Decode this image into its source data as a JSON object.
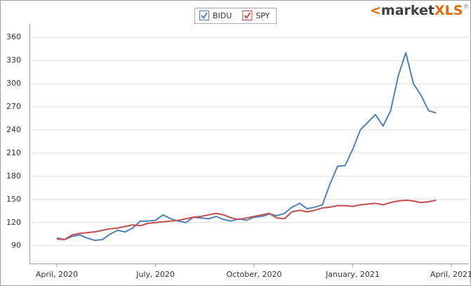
{
  "chart_data": {
    "type": "line",
    "logo": {
      "arrow": "<",
      "text": "market",
      "accent": "XLS",
      "mark": "®"
    },
    "categories": [
      "April, 2020",
      null,
      null,
      null,
      null,
      null,
      null,
      null,
      null,
      null,
      null,
      null,
      null,
      "July, 2020",
      null,
      null,
      null,
      null,
      null,
      null,
      null,
      null,
      null,
      null,
      null,
      null,
      "October, 2020",
      null,
      null,
      null,
      null,
      null,
      null,
      null,
      null,
      null,
      null,
      null,
      null,
      "January, 2021",
      null,
      null,
      null,
      null,
      null,
      null,
      null,
      null,
      null,
      null,
      null,
      null,
      "April, 2021"
    ],
    "series": [
      {
        "name": "BIDU",
        "color": "#4f81bd",
        "values": [
          100,
          98,
          102,
          104,
          100,
          97,
          98,
          105,
          110,
          108,
          113,
          122,
          122,
          123,
          130,
          125,
          122,
          120,
          127,
          126,
          125,
          128,
          124,
          122,
          125,
          123,
          127,
          128,
          131,
          129,
          132,
          140,
          145,
          138,
          140,
          143,
          170,
          193,
          194,
          215,
          240,
          250,
          260,
          245,
          265,
          310,
          340,
          300,
          285,
          265,
          262,
          null,
          null
        ]
      },
      {
        "name": "SPY",
        "color": "#c0504d",
        "values": [
          99,
          98,
          104,
          106,
          107,
          108,
          110,
          112,
          113,
          115,
          117,
          116,
          119,
          120,
          121,
          122,
          123,
          125,
          127,
          128,
          130,
          132,
          130,
          126,
          124,
          126,
          128,
          130,
          132,
          126,
          125,
          134,
          136,
          134,
          136,
          139,
          140,
          142,
          142,
          141,
          143,
          144,
          145,
          143,
          146,
          148,
          149,
          148,
          146,
          147,
          149,
          null,
          null
        ]
      }
    ],
    "ylim": [
      67,
      372
    ],
    "yticks": [
      90,
      120,
      150,
      180,
      210,
      240,
      270,
      300,
      330,
      360
    ],
    "grid": true
  }
}
